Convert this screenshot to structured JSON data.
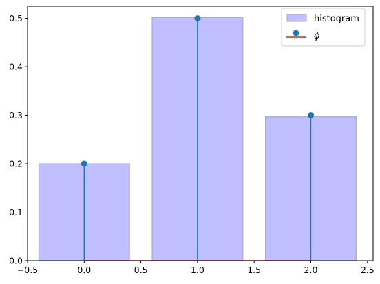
{
  "chart_data": {
    "type": "bar",
    "title": "",
    "xlabel": "",
    "ylabel": "",
    "xlim": [
      -0.5,
      2.55
    ],
    "ylim": [
      0,
      0.525
    ],
    "grid": false,
    "legend_placement": "top-right",
    "xticks": [
      -0.5,
      0.0,
      0.5,
      1.0,
      1.5,
      2.0,
      2.5
    ],
    "xtick_labels": [
      "−0.5",
      "0.0",
      "0.5",
      "1.0",
      "1.5",
      "2.0",
      "2.5"
    ],
    "yticks": [
      0.0,
      0.1,
      0.2,
      0.3,
      0.4,
      0.5
    ],
    "ytick_labels": [
      "0.0",
      "0.1",
      "0.2",
      "0.3",
      "0.4",
      "0.5"
    ],
    "series": [
      {
        "name": "histogram",
        "kind": "bar",
        "color": "#bfbfff",
        "edge_color": "#a7a7d2",
        "bar_width": 0.8,
        "x": [
          0,
          1,
          2
        ],
        "values": [
          0.2,
          0.502,
          0.297
        ]
      },
      {
        "name": "ϕ",
        "kind": "stem",
        "color": "#1f77b4",
        "baseline_color": "#d62728",
        "x": [
          0,
          1,
          2
        ],
        "values": [
          0.2,
          0.5,
          0.3
        ]
      }
    ]
  }
}
